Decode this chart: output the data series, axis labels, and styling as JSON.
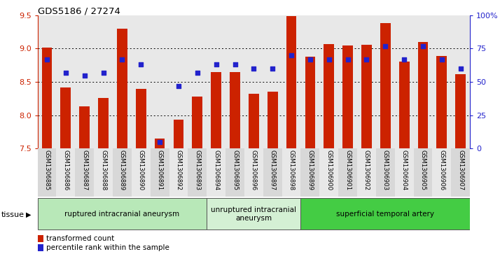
{
  "title": "GDS5186 / 27274",
  "samples": [
    "GSM1306885",
    "GSM1306886",
    "GSM1306887",
    "GSM1306888",
    "GSM1306889",
    "GSM1306890",
    "GSM1306891",
    "GSM1306892",
    "GSM1306893",
    "GSM1306894",
    "GSM1306895",
    "GSM1306896",
    "GSM1306897",
    "GSM1306898",
    "GSM1306899",
    "GSM1306900",
    "GSM1306901",
    "GSM1306902",
    "GSM1306903",
    "GSM1306904",
    "GSM1306905",
    "GSM1306906",
    "GSM1306907"
  ],
  "bar_values": [
    9.02,
    8.42,
    8.13,
    8.26,
    9.3,
    8.4,
    7.65,
    7.93,
    8.28,
    8.65,
    8.65,
    8.32,
    8.35,
    9.49,
    8.88,
    9.07,
    9.05,
    9.06,
    9.38,
    8.8,
    9.1,
    8.89,
    8.62
  ],
  "dot_percentiles": [
    67,
    57,
    55,
    57,
    67,
    63,
    5,
    47,
    57,
    63,
    63,
    60,
    60,
    70,
    67,
    67,
    67,
    67,
    77,
    67,
    77,
    67,
    60
  ],
  "ymin": 7.5,
  "ymax": 9.5,
  "yticks_left": [
    7.5,
    8.0,
    8.5,
    9.0,
    9.5
  ],
  "yticks_right": [
    0,
    25,
    50,
    75,
    100
  ],
  "ytick_labels_right": [
    "0",
    "25",
    "50",
    "75",
    "100%"
  ],
  "bar_color": "#cc2200",
  "dot_color": "#2222cc",
  "gridline_color": "#000000",
  "gridline_y": [
    8.0,
    8.5,
    9.0
  ],
  "groups": [
    {
      "label": "ruptured intracranial aneurysm",
      "start": 0,
      "end": 8,
      "color": "#b8e8b8"
    },
    {
      "label": "unruptured intracranial\naneurysm",
      "start": 9,
      "end": 13,
      "color": "#d4f0d4"
    },
    {
      "label": "superficial temporal artery",
      "start": 14,
      "end": 22,
      "color": "#44cc44"
    }
  ],
  "legend_bar_label": "transformed count",
  "legend_dot_label": "percentile rank within the sample",
  "tissue_label": "tissue",
  "plot_bg": "#e8e8e8",
  "fig_bg": "#ffffff",
  "bar_width": 0.55
}
